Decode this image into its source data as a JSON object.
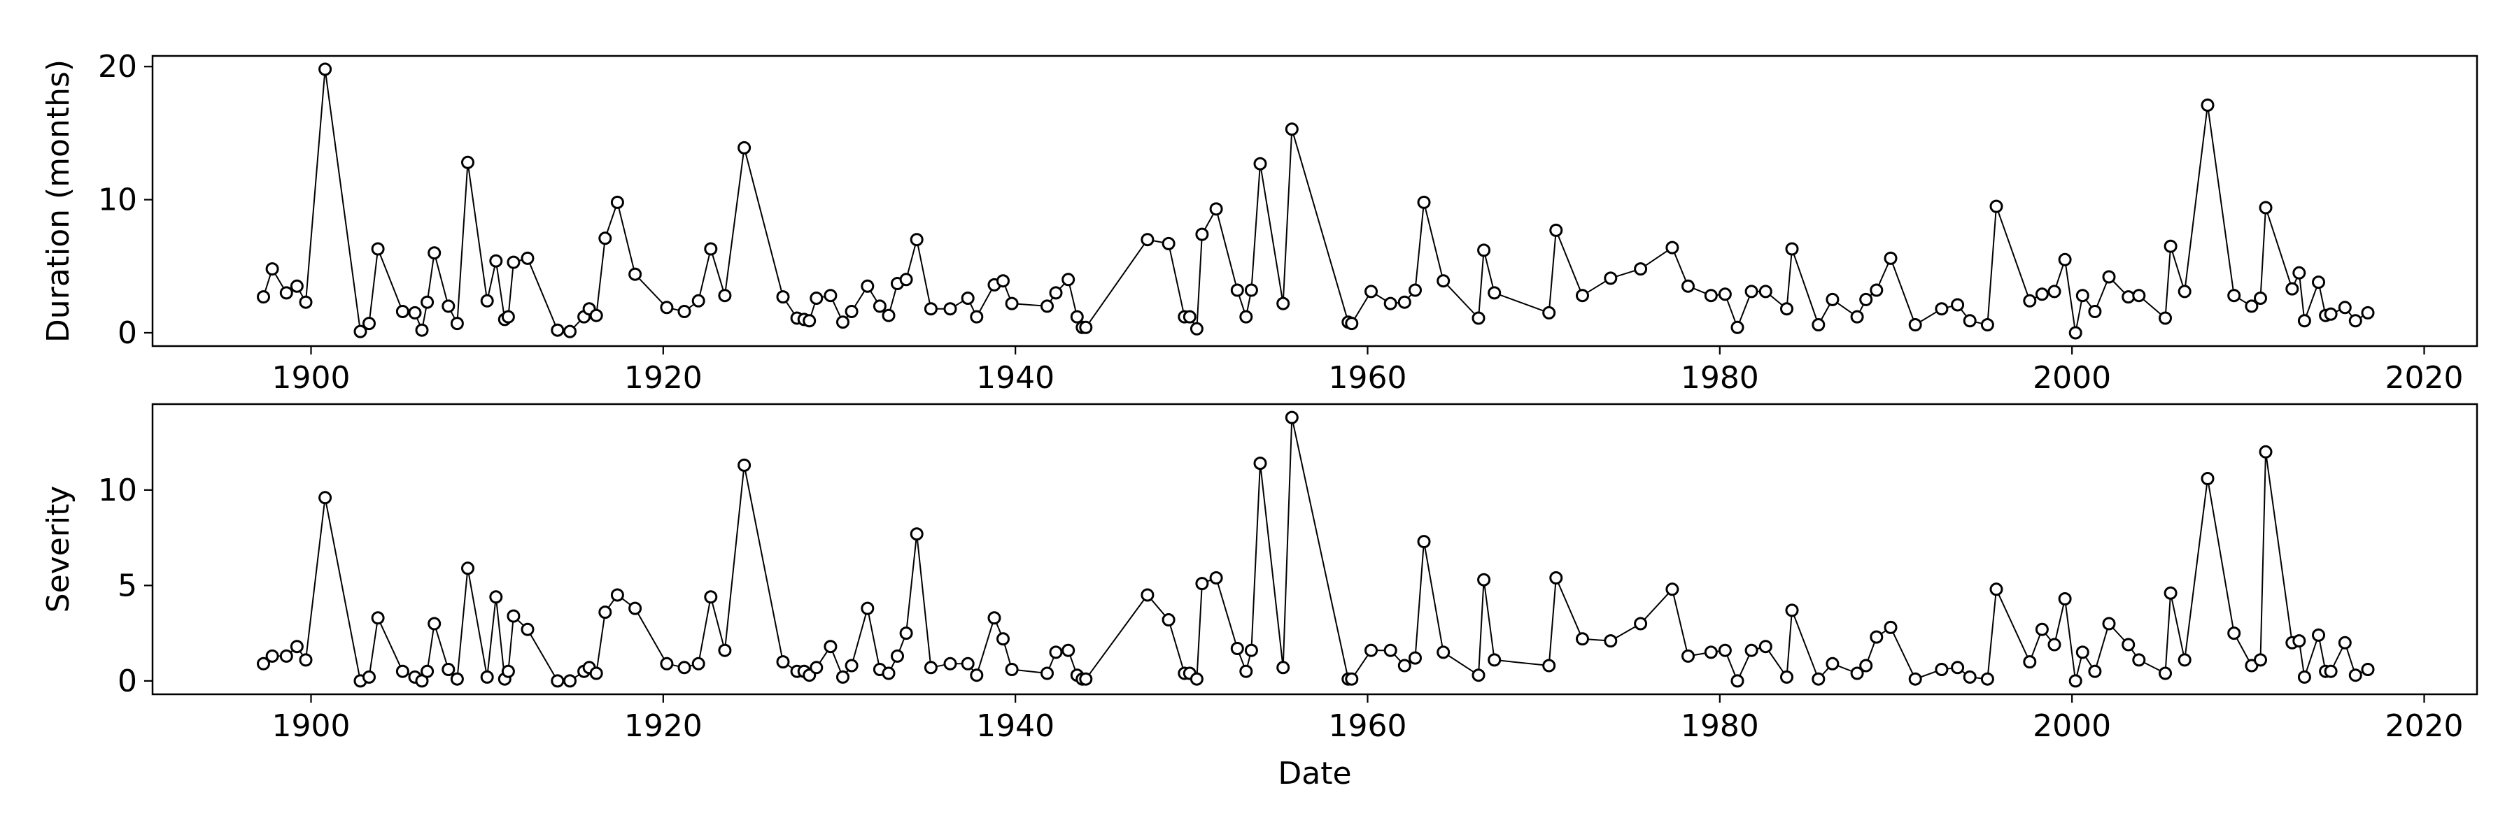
{
  "chart_data": [
    {
      "type": "line",
      "xlabel": "",
      "ylabel": "Duration (months)",
      "xlim": [
        1891,
        2023
      ],
      "ylim": [
        -1,
        20.8
      ],
      "xticks": [
        1900,
        1920,
        1940,
        1960,
        1980,
        2000,
        2020
      ],
      "yticks": [
        0,
        10,
        20
      ],
      "grid": false,
      "marker": "open-circle",
      "line_color": "#000000",
      "series": [
        {
          "x": [
            1897.3,
            1897.8,
            1898.6,
            1899.2,
            1899.7,
            1900.8,
            1902.8,
            1903.3,
            1903.8,
            1905.2,
            1905.9,
            1906.3,
            1906.6,
            1907.0,
            1907.8,
            1908.3,
            1908.9,
            1910.0,
            1910.5,
            1911.0,
            1911.2,
            1911.5,
            1912.3,
            1914.0,
            1914.7,
            1915.5,
            1915.8,
            1916.2,
            1916.7,
            1917.4,
            1918.4,
            1920.2,
            1921.2,
            1922.0,
            1922.7,
            1923.5,
            1924.6,
            1926.8,
            1927.6,
            1928.0,
            1928.3,
            1928.7,
            1929.5,
            1930.2,
            1930.7,
            1931.6,
            1932.3,
            1932.8,
            1933.3,
            1933.8,
            1934.4,
            1935.2,
            1936.3,
            1937.3,
            1937.8,
            1938.8,
            1939.3,
            1939.8,
            1941.8,
            1942.3,
            1943.0,
            1943.5,
            1943.8,
            1944.0,
            1947.5,
            1948.7,
            1949.6,
            1949.9,
            1950.3,
            1950.6,
            1951.4,
            1952.6,
            1953.1,
            1953.4,
            1953.9,
            1955.2,
            1955.7,
            1958.9,
            1959.1,
            1960.2,
            1961.3,
            1962.1,
            1962.7,
            1963.2,
            1964.3,
            1966.3,
            1966.6,
            1967.2,
            1970.3,
            1970.7,
            1972.2,
            1973.8,
            1975.5,
            1977.3,
            1978.2,
            1979.5,
            1980.3,
            1981.0,
            1981.8,
            1982.6,
            1983.8,
            1984.1,
            1985.6,
            1986.4,
            1987.8,
            1988.3,
            1988.9,
            1989.7,
            1991.1,
            1992.6,
            1993.5,
            1994.2,
            1995.2,
            1995.7,
            1997.6,
            1998.3,
            1999.0,
            1999.6,
            2000.2,
            2000.6,
            2001.3,
            2002.1,
            2003.2,
            2003.8,
            2005.3,
            2005.6,
            2006.4,
            2007.7,
            2009.2,
            2010.2,
            2010.7,
            2011.0,
            2012.5,
            2012.9,
            2013.2,
            2014.0,
            2014.4,
            2014.7,
            2015.5,
            2016.1,
            2016.8
          ],
          "values": [
            2.7,
            4.8,
            3.0,
            3.5,
            2.3,
            19.8,
            0.1,
            0.7,
            6.3,
            1.6,
            1.5,
            0.2,
            2.3,
            6.0,
            2.0,
            0.7,
            12.8,
            2.4,
            5.4,
            1.0,
            1.2,
            5.3,
            5.6,
            0.2,
            0.1,
            1.2,
            1.8,
            1.3,
            7.1,
            9.8,
            4.4,
            1.9,
            1.6,
            2.4,
            6.3,
            2.8,
            13.9,
            2.7,
            1.1,
            1.0,
            0.9,
            2.6,
            2.8,
            0.8,
            1.6,
            3.5,
            2.0,
            1.3,
            3.7,
            4.0,
            7.0,
            1.8,
            1.8,
            2.6,
            1.2,
            3.6,
            3.9,
            2.2,
            2.0,
            3.0,
            4.0,
            1.2,
            0.4,
            0.4,
            7.0,
            6.7,
            1.2,
            1.2,
            0.3,
            7.4,
            9.3,
            3.2,
            1.2,
            3.2,
            12.7,
            2.2,
            15.3,
            0.8,
            0.7,
            3.1,
            2.2,
            2.3,
            3.2,
            9.8,
            3.9,
            1.1,
            6.2,
            3.0,
            1.5,
            7.7,
            2.8,
            4.1,
            4.8,
            6.4,
            3.5,
            2.8,
            2.9,
            0.4,
            3.1,
            3.1,
            1.8,
            6.3,
            0.6,
            2.5,
            1.2,
            2.5,
            3.2,
            5.6,
            0.6,
            1.8,
            2.1,
            0.9,
            0.6,
            9.5,
            2.4,
            2.9,
            3.1,
            5.5,
            0.0,
            2.8,
            1.6,
            4.2,
            2.7,
            2.8,
            1.1,
            6.5,
            3.1,
            17.1,
            2.8,
            2.0,
            2.6,
            9.4,
            3.3,
            4.5,
            0.9,
            3.8,
            1.3,
            1.4,
            1.9,
            0.9,
            1.5
          ]
        }
      ]
    },
    {
      "type": "line",
      "xlabel": "Date",
      "ylabel": "Severity",
      "xlim": [
        1891,
        2023
      ],
      "ylim": [
        -0.7,
        14.5
      ],
      "xticks": [
        1900,
        1920,
        1940,
        1960,
        1980,
        2000,
        2020
      ],
      "yticks": [
        0,
        5,
        10
      ],
      "grid": false,
      "marker": "open-circle",
      "line_color": "#000000",
      "series": [
        {
          "x": [
            1897.3,
            1897.8,
            1898.6,
            1899.2,
            1899.7,
            1900.8,
            1902.8,
            1903.3,
            1903.8,
            1905.2,
            1905.9,
            1906.3,
            1906.6,
            1907.0,
            1907.8,
            1908.3,
            1908.9,
            1910.0,
            1910.5,
            1911.0,
            1911.2,
            1911.5,
            1912.3,
            1914.0,
            1914.7,
            1915.5,
            1915.8,
            1916.2,
            1916.7,
            1917.4,
            1918.4,
            1920.2,
            1921.2,
            1922.0,
            1922.7,
            1923.5,
            1924.6,
            1926.8,
            1927.6,
            1928.0,
            1928.3,
            1928.7,
            1929.5,
            1930.2,
            1930.7,
            1931.6,
            1932.3,
            1932.8,
            1933.3,
            1933.8,
            1934.4,
            1935.2,
            1936.3,
            1937.3,
            1937.8,
            1938.8,
            1939.3,
            1939.8,
            1941.8,
            1942.3,
            1943.0,
            1943.5,
            1943.8,
            1944.0,
            1947.5,
            1948.7,
            1949.6,
            1949.9,
            1950.3,
            1950.6,
            1951.4,
            1952.6,
            1953.1,
            1953.4,
            1953.9,
            1955.2,
            1955.7,
            1958.9,
            1959.1,
            1960.2,
            1961.3,
            1962.1,
            1962.7,
            1963.2,
            1964.3,
            1966.3,
            1966.6,
            1967.2,
            1970.3,
            1970.7,
            1972.2,
            1973.8,
            1975.5,
            1977.3,
            1978.2,
            1979.5,
            1980.3,
            1981.0,
            1981.8,
            1982.6,
            1983.8,
            1984.1,
            1985.6,
            1986.4,
            1987.8,
            1988.3,
            1988.9,
            1989.7,
            1991.1,
            1992.6,
            1993.5,
            1994.2,
            1995.2,
            1995.7,
            1997.6,
            1998.3,
            1999.0,
            1999.6,
            2000.2,
            2000.6,
            2001.3,
            2002.1,
            2003.2,
            2003.8,
            2005.3,
            2005.6,
            2006.4,
            2007.7,
            2009.2,
            2010.2,
            2010.7,
            2011.0,
            2012.5,
            2012.9,
            2013.2,
            2014.0,
            2014.4,
            2014.7,
            2015.5,
            2016.1,
            2016.8
          ],
          "values": [
            0.9,
            1.3,
            1.3,
            1.8,
            1.1,
            9.6,
            0.0,
            0.2,
            3.3,
            0.5,
            0.2,
            0.0,
            0.5,
            3.0,
            0.6,
            0.1,
            5.9,
            0.2,
            4.4,
            0.1,
            0.5,
            3.4,
            2.7,
            0.0,
            0.0,
            0.5,
            0.7,
            0.4,
            3.6,
            4.5,
            3.8,
            0.9,
            0.7,
            0.9,
            4.4,
            1.6,
            11.3,
            1.0,
            0.5,
            0.5,
            0.3,
            0.7,
            1.8,
            0.2,
            0.8,
            3.8,
            0.6,
            0.4,
            1.3,
            2.5,
            7.7,
            0.7,
            0.9,
            0.9,
            0.3,
            3.3,
            2.2,
            0.6,
            0.4,
            1.5,
            1.6,
            0.3,
            0.1,
            0.1,
            4.5,
            3.2,
            0.4,
            0.4,
            0.1,
            5.1,
            5.4,
            1.7,
            0.5,
            1.6,
            11.4,
            0.7,
            13.8,
            0.1,
            0.1,
            1.6,
            1.6,
            0.8,
            1.2,
            7.3,
            1.5,
            0.3,
            5.3,
            1.1,
            0.8,
            5.4,
            2.2,
            2.1,
            3.0,
            4.8,
            1.3,
            1.5,
            1.6,
            0.0,
            1.6,
            1.8,
            0.2,
            3.7,
            0.1,
            0.9,
            0.4,
            0.8,
            2.3,
            2.8,
            0.1,
            0.6,
            0.7,
            0.2,
            0.1,
            4.8,
            1.0,
            2.7,
            1.9,
            4.3,
            0.0,
            1.5,
            0.5,
            3.0,
            1.9,
            1.1,
            0.4,
            4.6,
            1.1,
            10.6,
            2.5,
            0.8,
            1.1,
            12.0,
            2.0,
            2.1,
            0.2,
            2.4,
            0.5,
            0.5,
            2.0,
            0.3,
            0.6
          ]
        }
      ]
    }
  ]
}
